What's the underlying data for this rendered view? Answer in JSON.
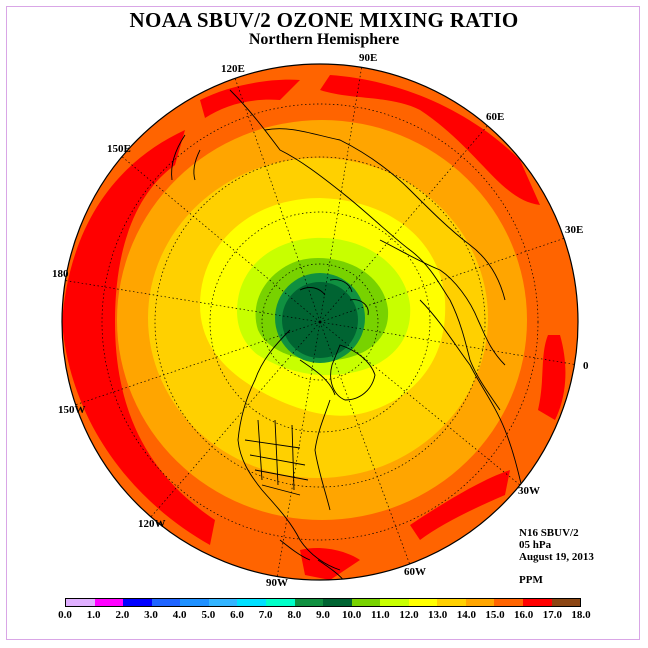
{
  "title": "NOAA SBUV/2 OZONE MIXING RATIO",
  "subtitle": "Northern Hemisphere",
  "longitude_labels": [
    "90E",
    "60E",
    "120E",
    "30E",
    "150E",
    "180",
    "0",
    "150W",
    "30W",
    "120W",
    "60W",
    "90W"
  ],
  "info": {
    "instrument": "N16 SBUV/2",
    "level": "05 hPa",
    "date": "August 19, 2013",
    "units": "PPM"
  },
  "colorbar": {
    "ticks": [
      "0.0",
      "1.0",
      "2.0",
      "3.0",
      "4.0",
      "5.0",
      "6.0",
      "7.0",
      "8.0",
      "9.0",
      "10.0",
      "11.0",
      "12.0",
      "13.0",
      "14.0",
      "15.0",
      "16.0",
      "17.0",
      "18.0"
    ],
    "colors": [
      "#bf80ff",
      "#e0b0ff",
      "#ff00ff",
      "#0000ff",
      "#1e64ff",
      "#1e90ff",
      "#32b4ff",
      "#00e0ff",
      "#00ffc8",
      "#109040",
      "#006432",
      "#78d200",
      "#c8ff00",
      "#ffff00",
      "#ffd000",
      "#ffa500",
      "#ff6400",
      "#ff0000",
      "#8b4513"
    ]
  },
  "map_field": {
    "projection": "north polar stereographic",
    "description_levels_ppm": [
      16,
      15,
      14,
      13,
      12,
      11,
      10,
      9
    ],
    "pole_value_ppm": 9.0,
    "rim_value_ppm": 16.0,
    "max_value_ppm": 17.0
  }
}
